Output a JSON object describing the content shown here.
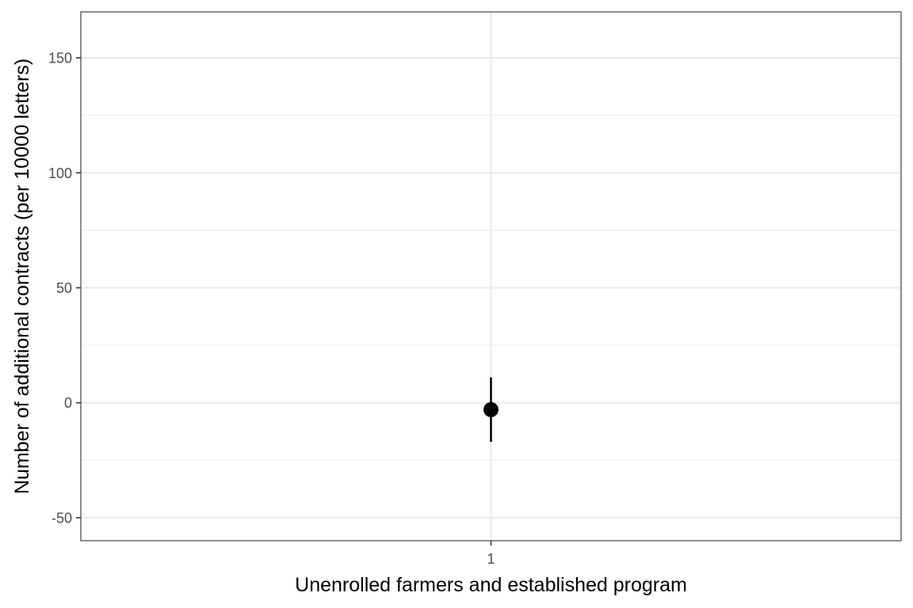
{
  "chart_data": {
    "type": "scatter",
    "title": "",
    "xlabel": "Unenrolled farmers and established program",
    "ylabel": "Number of additional contracts (per 10000 letters)",
    "x_categories": [
      "1"
    ],
    "ylim": [
      -60,
      170
    ],
    "y_ticks": [
      -50,
      0,
      50,
      100,
      150
    ],
    "y_tick_labels": [
      "-50",
      "0",
      "50",
      "100",
      "150"
    ],
    "y_minor_ticks": [
      -25,
      25,
      75,
      125
    ],
    "grid": true,
    "legend": "none",
    "points": [
      {
        "x": "1",
        "y": -3,
        "ci_low": -17,
        "ci_high": 11
      }
    ],
    "colors": {
      "point": "#000000",
      "grid_major": "#ebebeb",
      "grid_minor": "#ebebeb",
      "panel_border": "#333333",
      "tick_text": "#4d4d4d"
    }
  }
}
